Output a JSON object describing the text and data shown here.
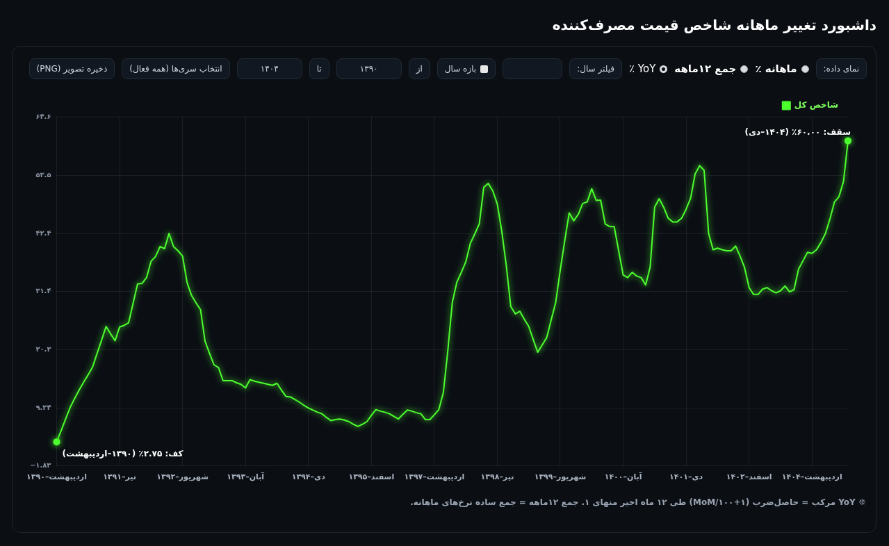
{
  "chart_data": {
    "type": "line",
    "title": "داشبورد تغییر ماهانه شاخص قیمت مصرف‌کننده",
    "categories": [
      "۱۳۹۰–اردیبهشت",
      null,
      null,
      null,
      null,
      null,
      null,
      null,
      null,
      null,
      null,
      null,
      null,
      null,
      "۱۳۹۱–تیر",
      null,
      null,
      null,
      null,
      null,
      null,
      null,
      null,
      null,
      null,
      null,
      null,
      null,
      "۱۳۹۲–شهریور",
      null,
      null,
      null,
      null,
      null,
      null,
      null,
      null,
      null,
      null,
      null,
      null,
      null,
      "۱۳۹۳–آبان",
      null,
      null,
      null,
      null,
      null,
      null,
      null,
      null,
      null,
      null,
      null,
      null,
      null,
      "۱۳۹۴–دی",
      null,
      null,
      null,
      null,
      null,
      null,
      null,
      null,
      null,
      null,
      null,
      null,
      null,
      "۱۳۹۵–اسفند",
      null,
      null,
      null,
      null,
      null,
      null,
      null,
      null,
      null,
      null,
      null,
      null,
      null,
      "۱۳۹۷–اردیبهشت",
      null,
      null,
      null,
      null,
      null,
      null,
      null,
      null,
      null,
      null,
      null,
      null,
      null,
      "۱۳۹۸–تیر",
      null,
      null,
      null,
      null,
      null,
      null,
      null,
      null,
      null,
      null,
      null,
      null,
      null,
      "۱۳۹۹–شهریور",
      null,
      null,
      null,
      null,
      null,
      null,
      null,
      null,
      null,
      null,
      null,
      null,
      null,
      "۱۴۰۰–آبان",
      null,
      null,
      null,
      null,
      null,
      null,
      null,
      null,
      null,
      null,
      null,
      null,
      null,
      "۱۴۰۱–دی",
      null,
      null,
      null,
      null,
      null,
      null,
      null,
      null,
      null,
      null,
      null,
      null,
      null,
      "۱۴۰۲–اسفند",
      null,
      null,
      null,
      null,
      null,
      null,
      null,
      null,
      null,
      null,
      null,
      null,
      null,
      "۱۴۰۴–اردیبهشت",
      null,
      null,
      null,
      null,
      null,
      null,
      null,
      null
    ],
    "series": [
      {
        "name": "شاخص کل",
        "color": "#4dff2e",
        "values": [
          2.75,
          4.9,
          7.1,
          9.3,
          11.0,
          12.6,
          14.1,
          15.5,
          17.0,
          19.6,
          22.1,
          24.7,
          23.3,
          22.0,
          24.6,
          24.9,
          25.4,
          29.1,
          32.8,
          32.9,
          34.0,
          37.1,
          38.0,
          39.9,
          39.5,
          42.4,
          39.9,
          39.1,
          38.1,
          33.1,
          30.6,
          29.2,
          27.9,
          21.9,
          19.6,
          17.4,
          16.9,
          14.4,
          14.4,
          14.4,
          14.0,
          13.7,
          13.0,
          14.6,
          14.3,
          14.1,
          13.9,
          13.7,
          13.5,
          13.9,
          12.6,
          11.4,
          11.3,
          10.8,
          10.3,
          9.7,
          9.2,
          8.8,
          8.4,
          8.1,
          7.4,
          6.8,
          7.0,
          7.1,
          6.9,
          6.6,
          6.1,
          5.7,
          6.1,
          6.6,
          7.8,
          8.9,
          8.6,
          8.4,
          8.1,
          7.6,
          7.1,
          8.0,
          8.8,
          8.6,
          8.3,
          8.1,
          7.0,
          7.0,
          7.9,
          8.9,
          12.1,
          20.1,
          29.3,
          33.1,
          35.0,
          37.0,
          40.5,
          42.3,
          44.2,
          51.2,
          51.9,
          50.5,
          48.0,
          42.8,
          36.3,
          28.5,
          27.1,
          27.6,
          26.1,
          24.7,
          22.2,
          19.8,
          21.2,
          22.6,
          26.0,
          29.3,
          35.4,
          41.0,
          46.3,
          44.8,
          46.0,
          48.1,
          48.4,
          50.9,
          48.7,
          48.7,
          44.2,
          43.7,
          43.7,
          39.1,
          34.5,
          34.0,
          35.0,
          34.3,
          34.0,
          32.6,
          36.0,
          47.4,
          49.0,
          47.4,
          45.3,
          44.6,
          44.6,
          45.3,
          47.0,
          49.1,
          53.7,
          55.3,
          54.4,
          42.4,
          39.3,
          39.6,
          39.3,
          39.1,
          39.1,
          40.0,
          38.1,
          35.9,
          32.1,
          30.8,
          30.8,
          31.8,
          32.1,
          31.5,
          31.1,
          31.5,
          32.4,
          31.3,
          31.7,
          35.6,
          37.2,
          38.8,
          38.6,
          39.3,
          40.7,
          42.4,
          45.2,
          48.4,
          49.4,
          52.3,
          60.0
        ]
      }
    ],
    "ylim": [
      -1.83,
      64.6
    ],
    "yticks": [
      {
        "value": -1.83,
        "label": "−۱.۸۳"
      },
      {
        "value": 9.24,
        "label": "۹.۲۴"
      },
      {
        "value": 20.3,
        "label": "۲۰.۳"
      },
      {
        "value": 31.4,
        "label": "۳۱.۴"
      },
      {
        "value": 42.4,
        "label": "۴۲.۴"
      },
      {
        "value": 53.5,
        "label": "۵۳.۵"
      },
      {
        "value": 64.6,
        "label": "۶۴.۶"
      }
    ],
    "grid": true,
    "legend": "top right",
    "marker": "none",
    "line_style": "solid",
    "annotations": [
      "کف: ۲.۷۵٪ (۱۳۹۰–اردیبهشت)",
      "سقف: ۶۰.۰۰٪ (۱۴۰۴–دی)",
      "❊ YoY مرکب = حاصل‌ضرب (۱+MoM/۱۰۰) طی ۱۲ ماه اخیر منهای ۱. جمع ۱۲ماهه = جمع ساده نرخ‌های ماهانه.",
      "نمای داده:",
      "ماهانه ٪",
      "جمع ۱۲ماهه",
      "YoY ٪",
      "فیلتر سال:",
      "بازه سال",
      "از",
      "۱۳۹۰",
      "تا",
      "۱۴۰۴",
      "انتخاب سری‌ها (همه فعال)",
      "ذخیره تصویر (PNG)"
    ]
  }
}
